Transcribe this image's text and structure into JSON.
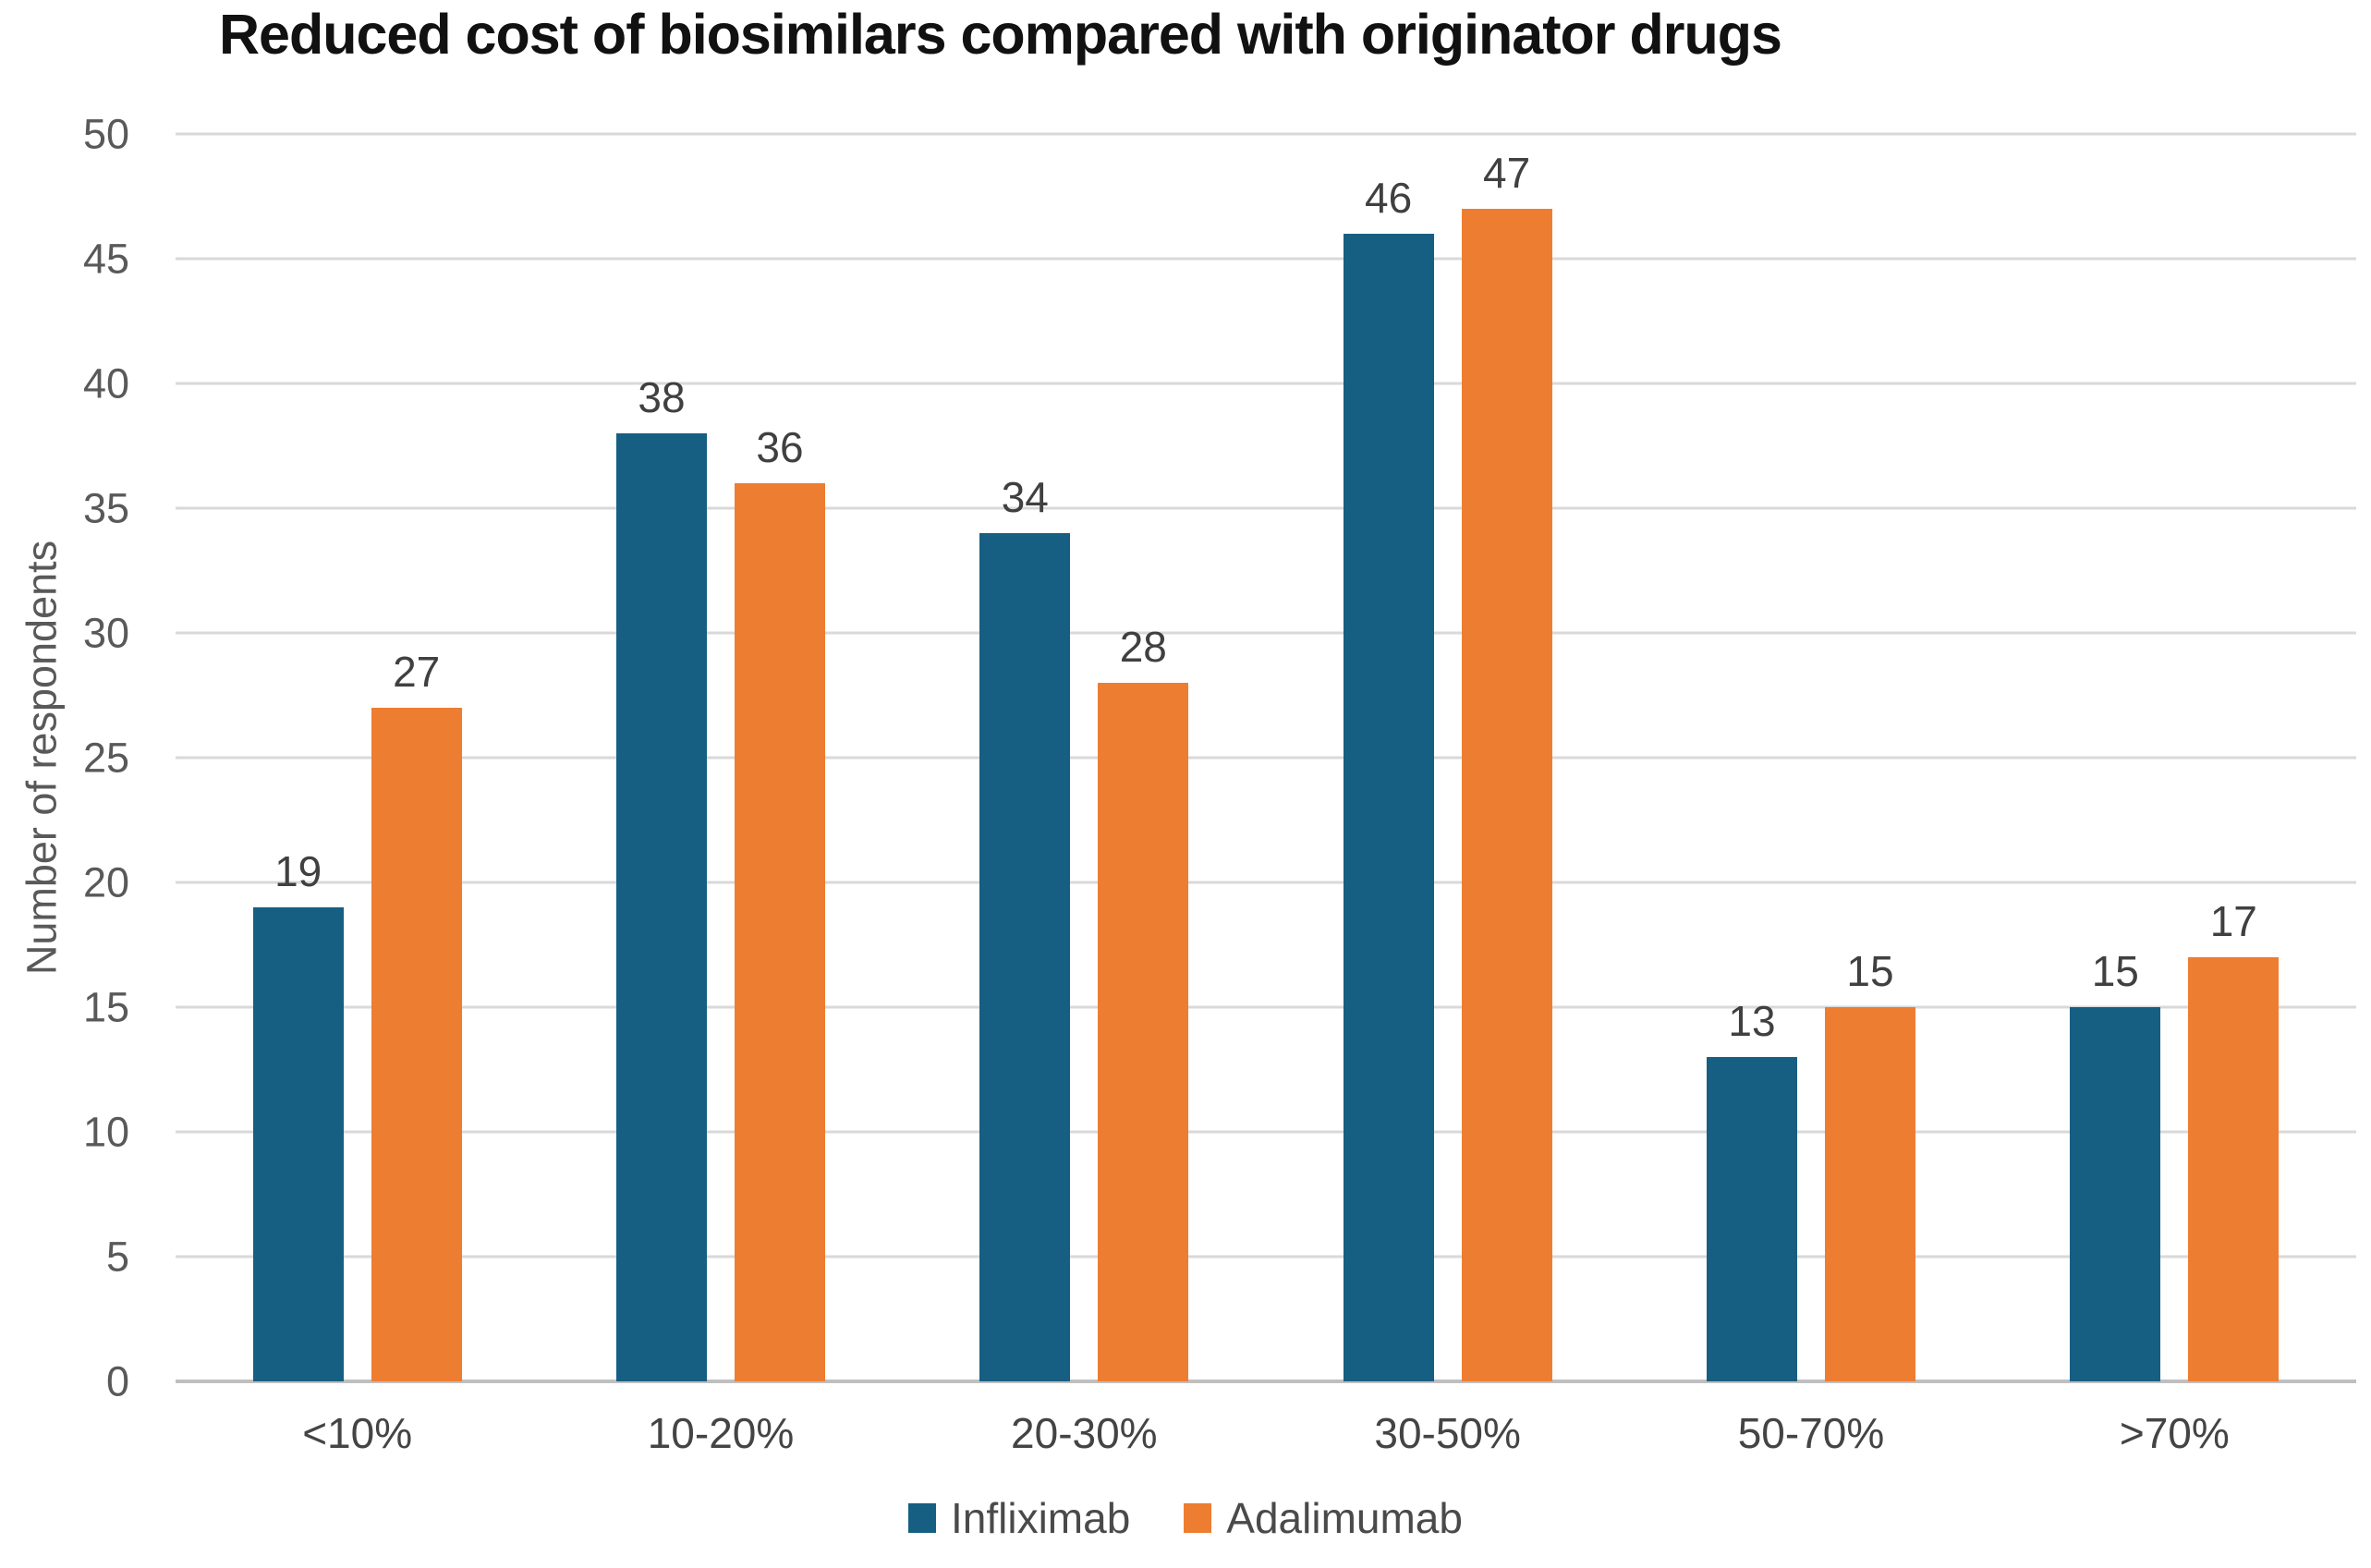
{
  "chart_data": {
    "type": "bar",
    "title": "Reduced cost of biosimilars compared with originator drugs",
    "xlabel": "",
    "ylabel": "Number of respondents",
    "categories": [
      "<10%",
      "10-20%",
      "20-30%",
      "30-50%",
      "50-70%",
      ">70%"
    ],
    "series": [
      {
        "name": "Infliximab",
        "color": "#165F82",
        "values": [
          19,
          38,
          34,
          46,
          13,
          15
        ]
      },
      {
        "name": "Adalimumab",
        "color": "#ED7D31",
        "values": [
          27,
          36,
          28,
          47,
          15,
          17
        ]
      }
    ],
    "ylim": [
      0,
      50
    ],
    "yticks": [
      0,
      5,
      10,
      15,
      20,
      25,
      30,
      35,
      40,
      45,
      50
    ],
    "grid": true,
    "data_labels": true,
    "legend_position": "bottom"
  },
  "colors": {
    "infliximab": "#165F82",
    "adalimumab": "#ED7D31",
    "gridline": "#D9D9D9",
    "axis_line": "#BFBFBF",
    "tick_label": "#595959",
    "data_label": "#404040",
    "title": "#111111",
    "background": "#FFFFFF"
  }
}
